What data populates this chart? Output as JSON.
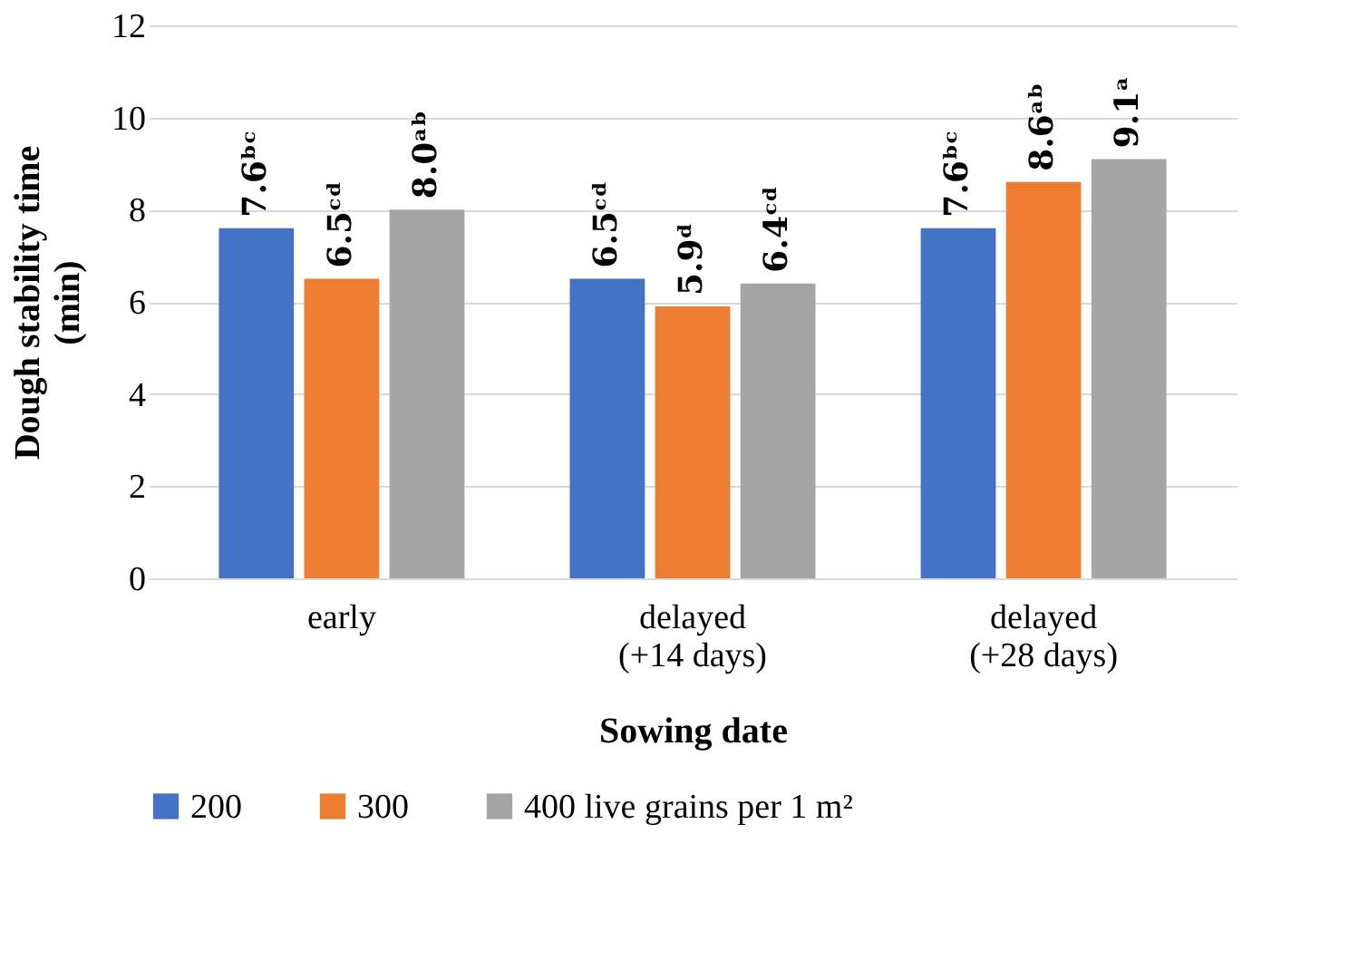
{
  "chart_data": {
    "type": "bar",
    "xlabel": "Sowing date",
    "ylabel": "Dough stability time (min)",
    "categories": [
      "early",
      "delayed (+14 days)",
      "delayed (+28 days)"
    ],
    "series": [
      {
        "name": "200",
        "color": "#4472c4",
        "values": [
          7.6,
          6.5,
          7.6
        ],
        "value_labels": [
          "7.6ᵇᶜ",
          "6.5ᶜᵈ",
          "7.6ᵇᶜ"
        ]
      },
      {
        "name": "300",
        "color": "#ed7d31",
        "values": [
          6.5,
          5.9,
          8.6
        ],
        "value_labels": [
          "6.5ᶜᵈ",
          "5.9ᵈ",
          "8.6ᵃᵇ"
        ]
      },
      {
        "name": "400 live grains per 1 m²",
        "color": "#a5a5a5",
        "values": [
          8.0,
          6.4,
          9.1
        ],
        "value_labels": [
          "8.0ᵃᵇ",
          "6.4ᶜᵈ",
          "9.1ᵃ"
        ]
      }
    ],
    "ylim": [
      0,
      12
    ],
    "yticks": [
      0,
      2,
      4,
      6,
      8,
      10,
      12
    ],
    "grid": "y",
    "legend": "bottom"
  }
}
